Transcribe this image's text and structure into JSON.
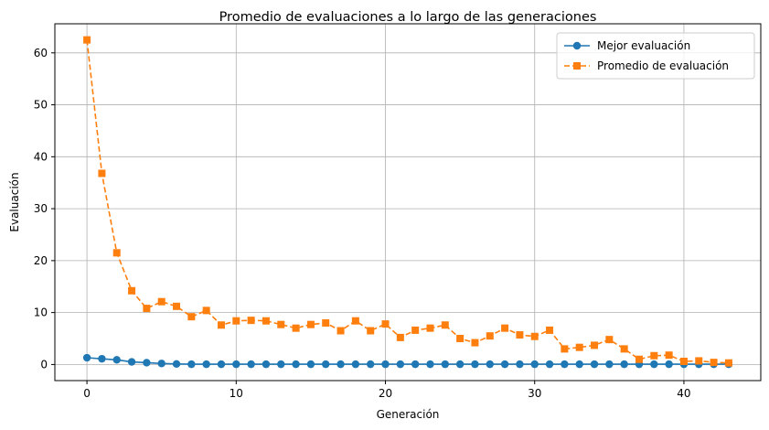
{
  "chart_data": {
    "type": "line",
    "title": "Promedio de evaluaciones a lo largo de las generaciones",
    "xlabel": "Generación",
    "ylabel": "Evaluación",
    "xlim": [
      -2.15,
      45.15
    ],
    "ylim": [
      -3.1,
      65.6
    ],
    "xticks": [
      0,
      10,
      20,
      30,
      40
    ],
    "yticks": [
      0,
      10,
      20,
      30,
      40,
      50,
      60
    ],
    "grid": true,
    "legend_position": "top-right",
    "x": [
      0,
      1,
      2,
      3,
      4,
      5,
      6,
      7,
      8,
      9,
      10,
      11,
      12,
      13,
      14,
      15,
      16,
      17,
      18,
      19,
      20,
      21,
      22,
      23,
      24,
      25,
      26,
      27,
      28,
      29,
      30,
      31,
      32,
      33,
      34,
      35,
      36,
      37,
      38,
      39,
      40,
      41,
      42,
      43
    ],
    "series": [
      {
        "name": "Mejor evaluación",
        "color": "#1f77b4",
        "marker": "circle",
        "linestyle": "solid",
        "values": [
          1.3,
          1.1,
          0.9,
          0.5,
          0.35,
          0.2,
          0.1,
          0.05,
          0.05,
          0.05,
          0.05,
          0.05,
          0.05,
          0.05,
          0.05,
          0.05,
          0.05,
          0.05,
          0.05,
          0.05,
          0.05,
          0.05,
          0.05,
          0.05,
          0.05,
          0.05,
          0.05,
          0.05,
          0.05,
          0.05,
          0.05,
          0.05,
          0.05,
          0.05,
          0.05,
          0.05,
          0.05,
          0.05,
          0.05,
          0.05,
          0.05,
          0.05,
          0.05,
          0.05
        ]
      },
      {
        "name": "Promedio de evaluación",
        "color": "#ff7f0e",
        "marker": "square",
        "linestyle": "dashed",
        "values": [
          62.5,
          36.8,
          21.5,
          14.2,
          10.8,
          12.1,
          11.2,
          9.2,
          10.4,
          7.6,
          8.4,
          8.5,
          8.4,
          7.7,
          7.0,
          7.7,
          8.0,
          6.5,
          8.4,
          6.5,
          7.8,
          5.2,
          6.6,
          7.0,
          7.6,
          5.0,
          4.2,
          5.5,
          7.0,
          5.7,
          5.4,
          6.6,
          3.0,
          3.3,
          3.7,
          4.8,
          3.0,
          1.0,
          1.7,
          1.8,
          0.6,
          0.7,
          0.4,
          0.3
        ]
      }
    ]
  }
}
